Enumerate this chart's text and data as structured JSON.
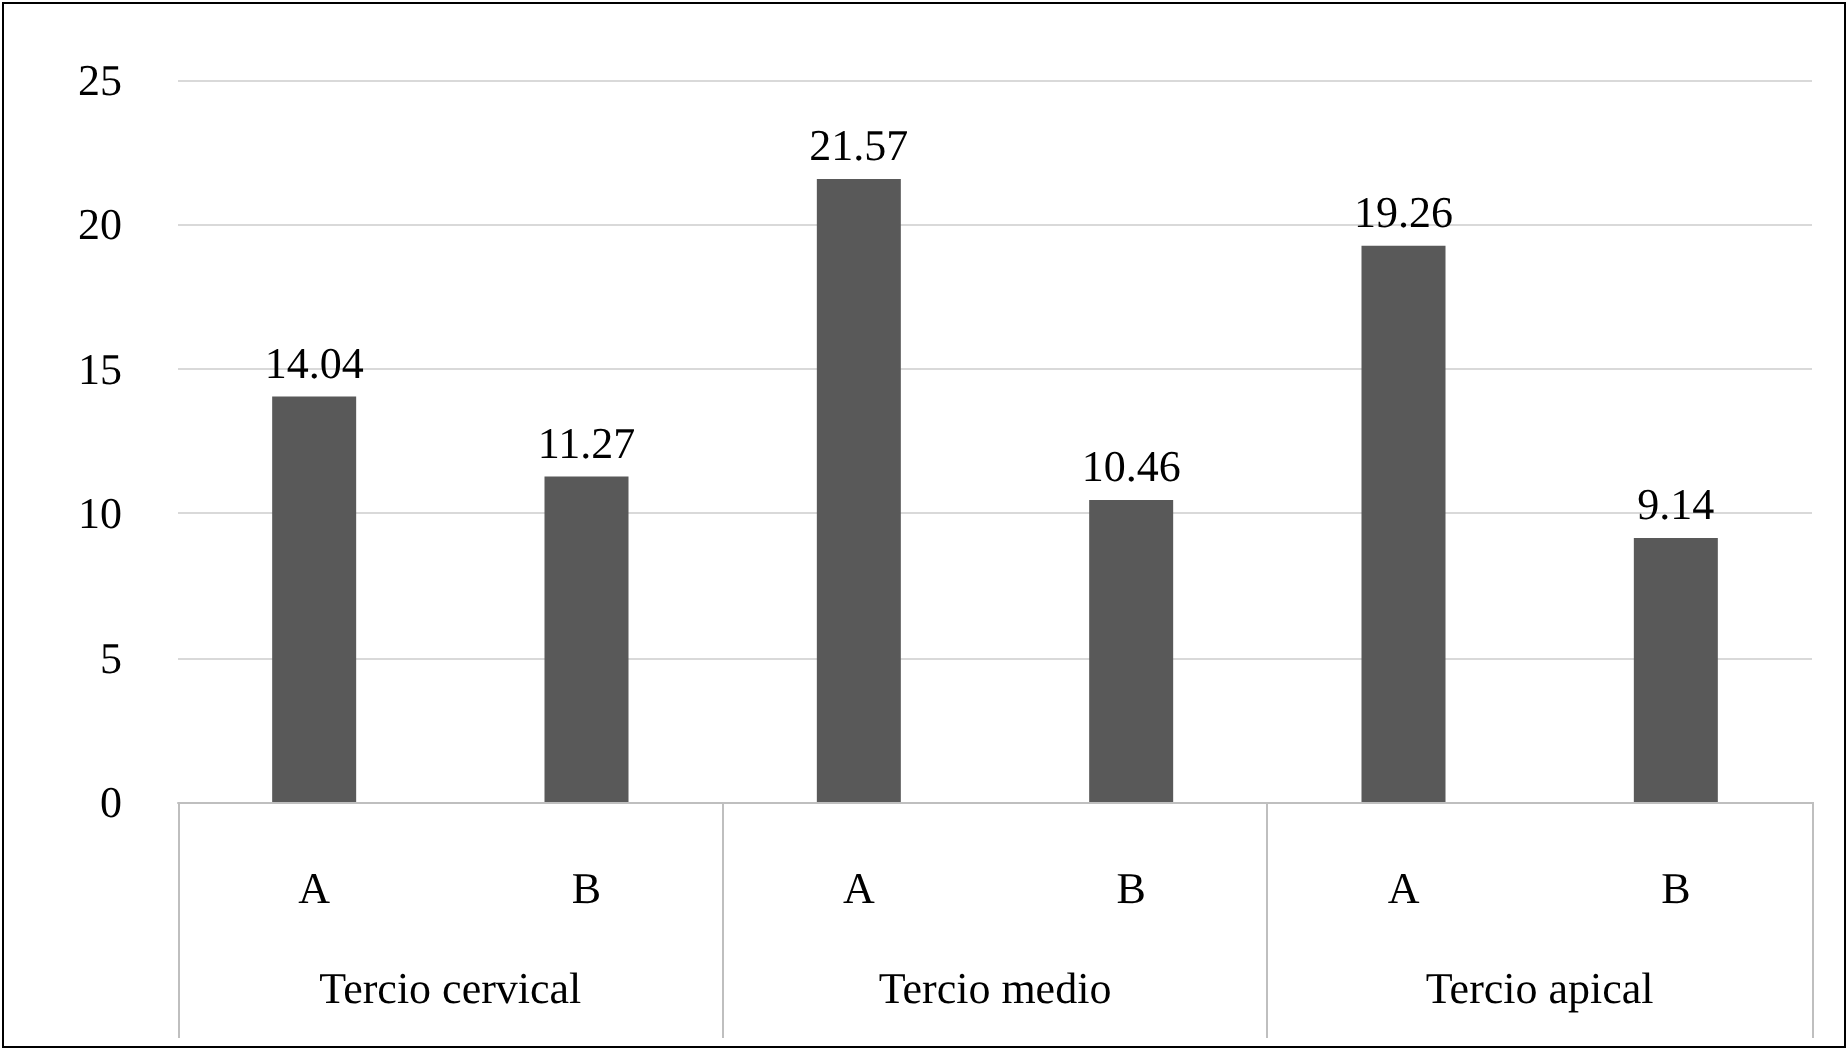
{
  "chart_data": {
    "type": "bar",
    "categories": [
      "A",
      "B",
      "A",
      "B",
      "A",
      "B"
    ],
    "values": [
      14.04,
      11.27,
      21.57,
      10.46,
      19.26,
      9.14
    ],
    "color": "#595959",
    "ylim": [
      0,
      25
    ],
    "yticks": [
      0,
      5,
      10,
      15,
      20,
      25
    ],
    "grid": "y",
    "data_labels": true,
    "annotations": [
      "Tercio cervical",
      "Tercio medio",
      "Tercio apical"
    ]
  }
}
